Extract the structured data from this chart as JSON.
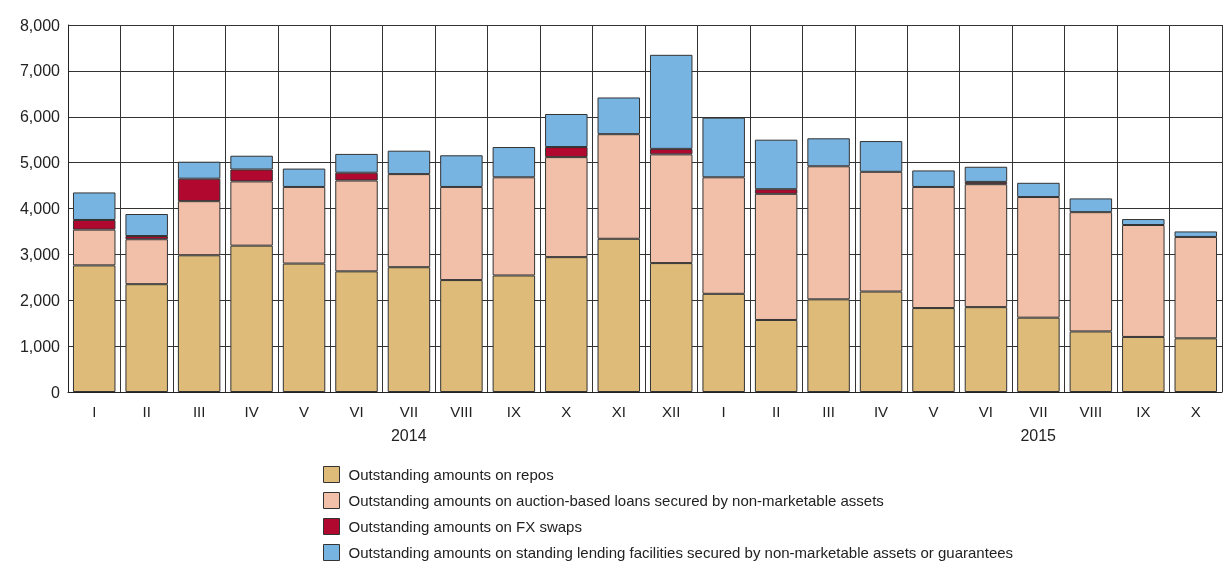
{
  "chart_data": {
    "type": "bar",
    "stacked": true,
    "categories": [
      "I",
      "II",
      "III",
      "IV",
      "V",
      "VI",
      "VII",
      "VIII",
      "IX",
      "X",
      "XI",
      "XII",
      "I",
      "II",
      "III",
      "IV",
      "V",
      "VI",
      "VII",
      "VIII",
      "IX",
      "X"
    ],
    "series": [
      {
        "name": "Outstanding amounts on repos",
        "color": "#debb78",
        "values": [
          2760,
          2350,
          2980,
          3190,
          2800,
          2630,
          2720,
          2440,
          2540,
          2940,
          3340,
          2810,
          2140,
          1570,
          2020,
          2190,
          1830,
          1850,
          1620,
          1320,
          1200,
          1170
        ]
      },
      {
        "name": "Outstanding amounts on auction-based loans secured by non-marketable assets",
        "color": "#f2c0a8",
        "values": [
          780,
          980,
          1180,
          1400,
          1670,
          1980,
          2030,
          2030,
          2140,
          2180,
          2280,
          2370,
          2540,
          2750,
          2900,
          2610,
          2640,
          2680,
          2630,
          2600,
          2440,
          2210
        ]
      },
      {
        "name": "Outstanding amounts on FX swaps",
        "color": "#b0082f",
        "values": [
          210,
          70,
          490,
          260,
          null,
          170,
          null,
          null,
          null,
          220,
          null,
          120,
          null,
          100,
          null,
          null,
          null,
          50,
          null,
          null,
          null,
          null
        ]
      },
      {
        "name": "Outstanding amounts on standing lending facilities secured by non-marketable assets or guarantees",
        "color": "#78b4e2",
        "values": [
          600,
          480,
          370,
          300,
          400,
          410,
          510,
          690,
          660,
          720,
          800,
          2050,
          1300,
          1080,
          610,
          670,
          360,
          330,
          310,
          300,
          130,
          120
        ]
      }
    ],
    "annotations": [
      "2014",
      "2015"
    ],
    "ylim": [
      0,
      8000
    ],
    "yticks": [
      0,
      {
        "value": 1000,
        "label": "1,000"
      },
      {
        "value": 2000,
        "label": "2,000"
      },
      {
        "value": 3000,
        "label": "3,000"
      },
      {
        "value": 4000,
        "label": "4,000"
      },
      {
        "value": 5000,
        "label": "5,000"
      },
      {
        "value": 6000,
        "label": "6,000"
      },
      {
        "value": 7000,
        "label": "7,000"
      },
      {
        "value": 8000,
        "label": "8,000"
      }
    ],
    "grid": true,
    "legend": "bottom"
  }
}
